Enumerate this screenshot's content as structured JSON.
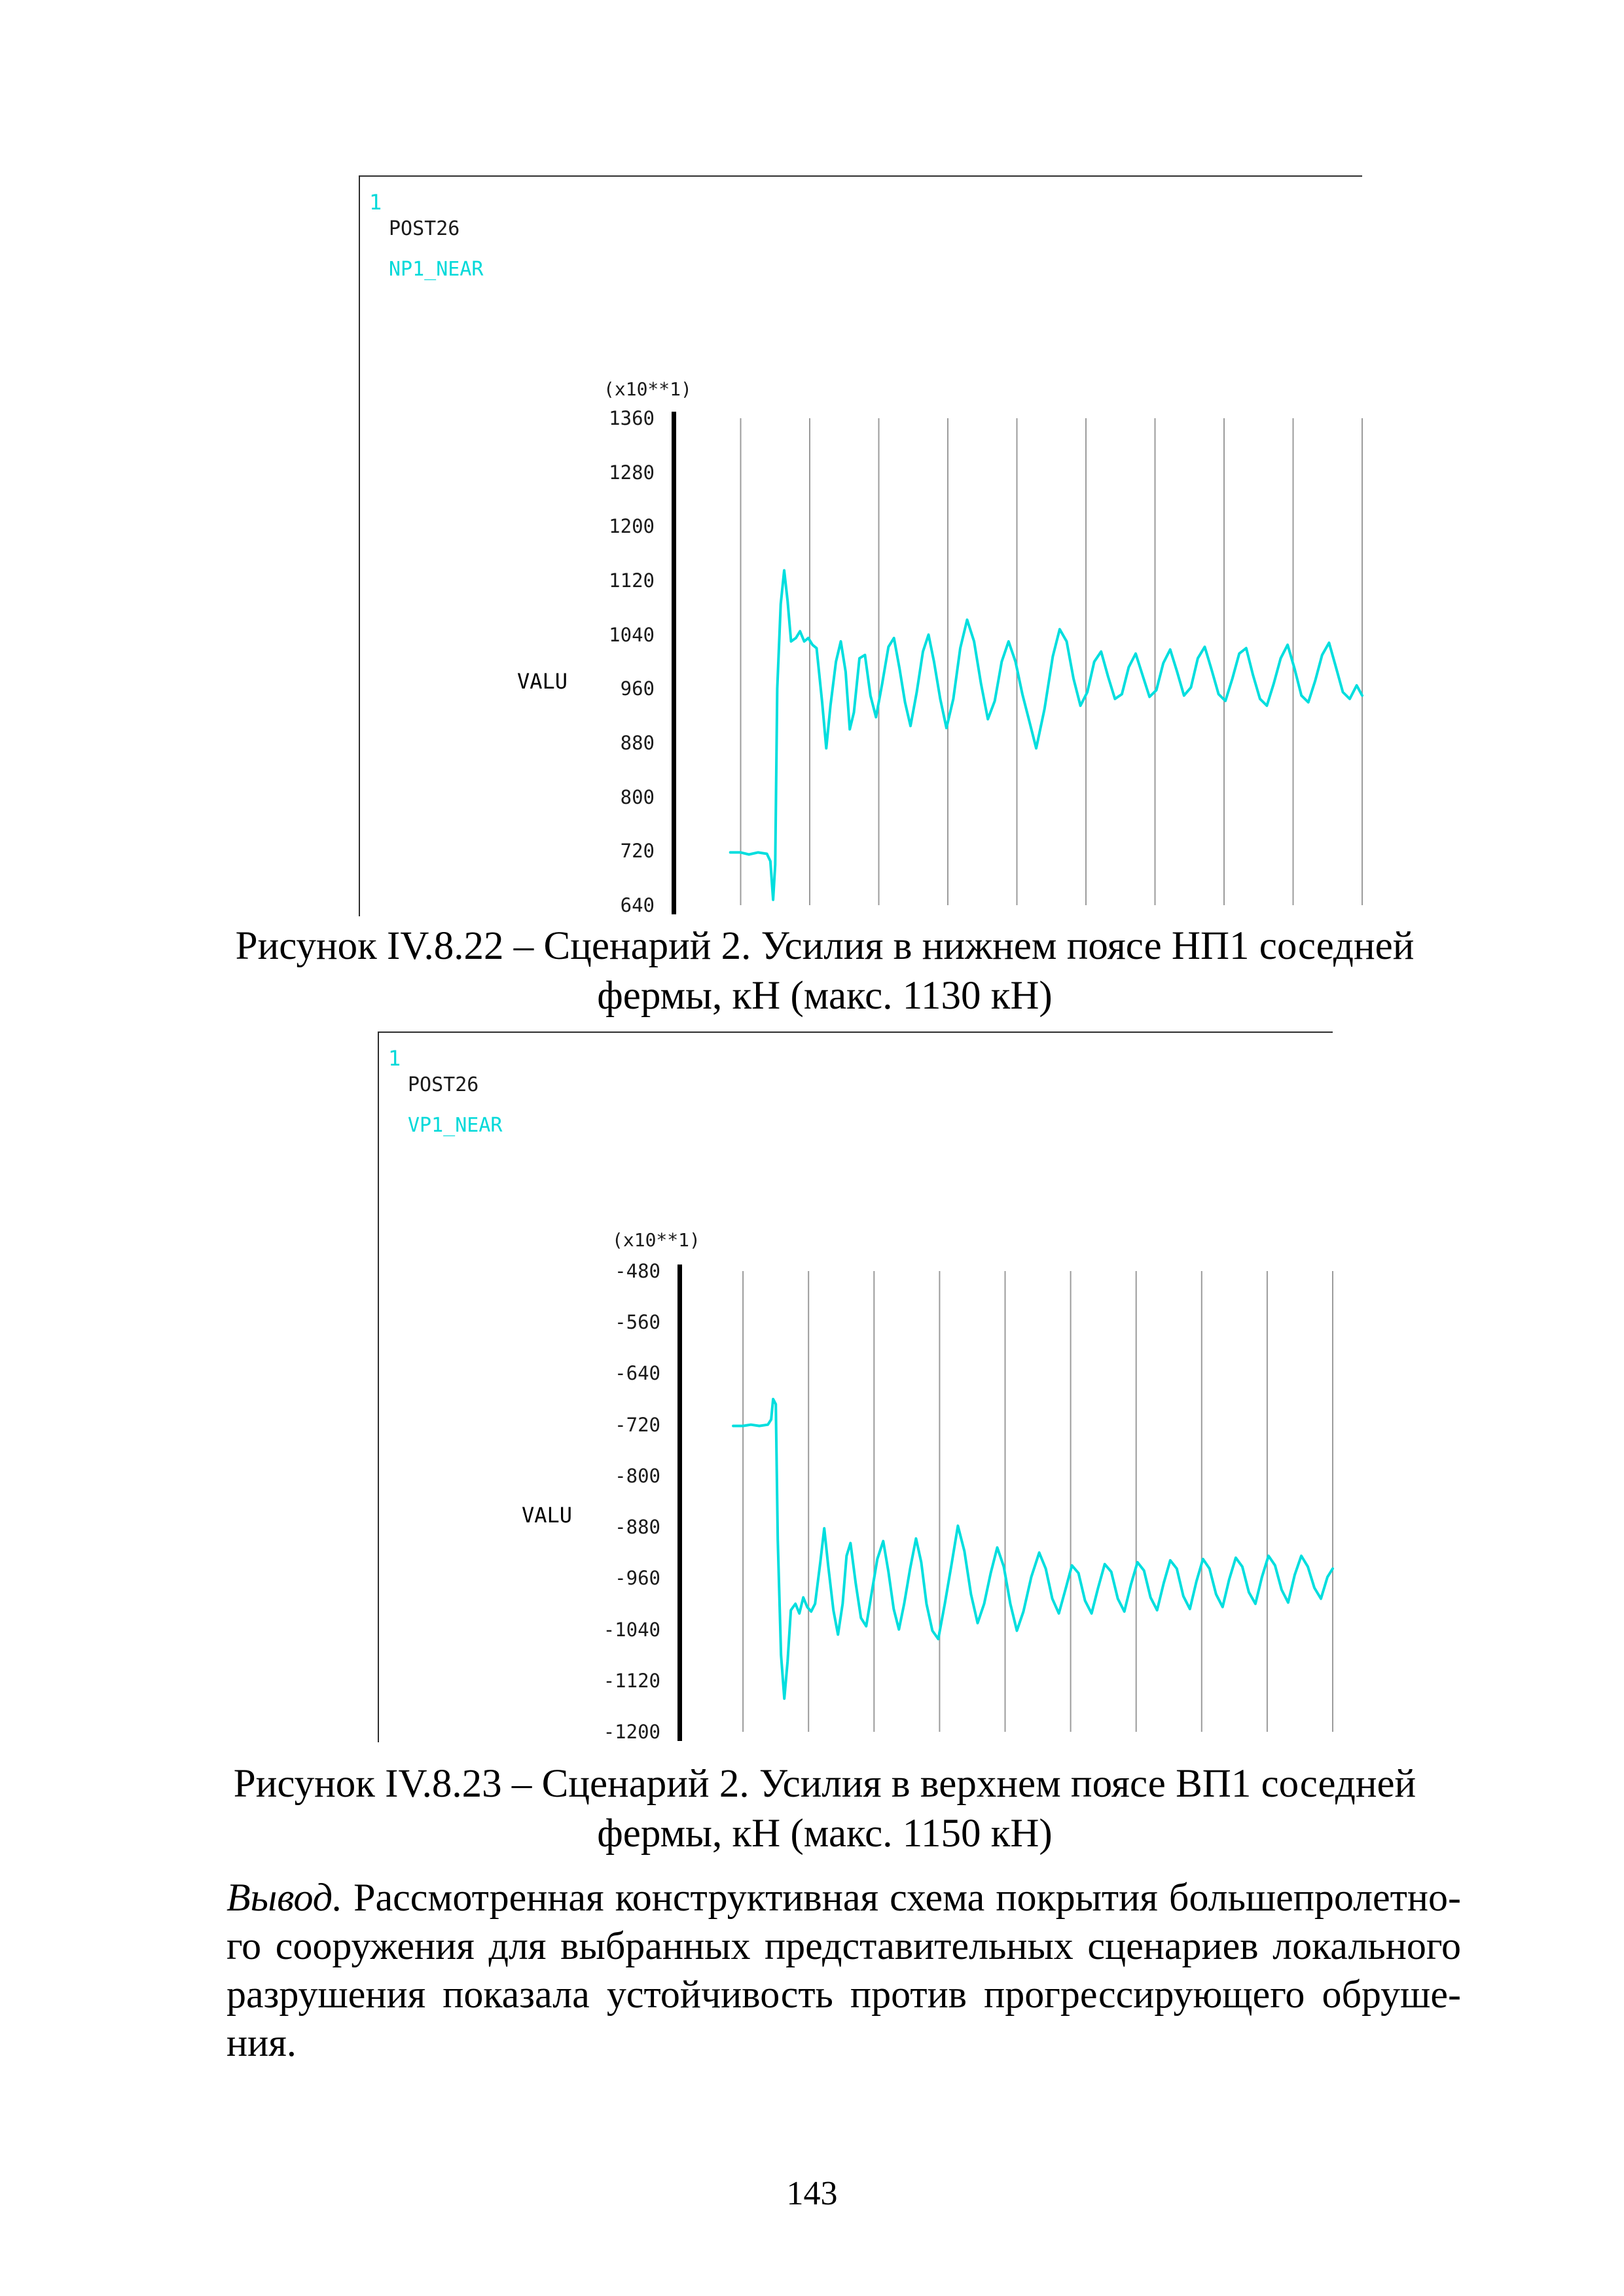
{
  "page": {
    "number": "143"
  },
  "colors": {
    "accent_cyan": "#00dede",
    "grid": "#9b9b9b",
    "axis": "#000000",
    "frame": "#2e2e2e"
  },
  "chart_data": [
    {
      "type": "line",
      "window_label": "1",
      "program": "POST26",
      "series_name": "NP1_NEAR",
      "axis_multiplier": "(x10**1)",
      "ylabel": "VALU",
      "yticks": [
        "1360",
        "1280",
        "1200",
        "1120",
        "1040",
        "960",
        "880",
        "800",
        "720",
        "640"
      ],
      "ylim": [
        640,
        1360
      ],
      "x_divisions": 10,
      "grid": "vertical-only",
      "legend_position": "none",
      "line_color": "#00dede",
      "points": [
        [
          0.085,
          718
        ],
        [
          0.1,
          718
        ],
        [
          0.112,
          715
        ],
        [
          0.125,
          718
        ],
        [
          0.138,
          716
        ],
        [
          0.143,
          705
        ],
        [
          0.147,
          648
        ],
        [
          0.15,
          700
        ],
        [
          0.153,
          960
        ],
        [
          0.158,
          1085
        ],
        [
          0.163,
          1135
        ],
        [
          0.168,
          1090
        ],
        [
          0.173,
          1030
        ],
        [
          0.18,
          1035
        ],
        [
          0.186,
          1045
        ],
        [
          0.192,
          1030
        ],
        [
          0.198,
          1035
        ],
        [
          0.204,
          1025
        ],
        [
          0.21,
          1020
        ],
        [
          0.218,
          940
        ],
        [
          0.224,
          872
        ],
        [
          0.23,
          935
        ],
        [
          0.238,
          1000
        ],
        [
          0.245,
          1030
        ],
        [
          0.252,
          985
        ],
        [
          0.258,
          900
        ],
        [
          0.264,
          925
        ],
        [
          0.272,
          1005
        ],
        [
          0.28,
          1010
        ],
        [
          0.288,
          950
        ],
        [
          0.296,
          918
        ],
        [
          0.305,
          968
        ],
        [
          0.314,
          1022
        ],
        [
          0.322,
          1035
        ],
        [
          0.33,
          990
        ],
        [
          0.338,
          940
        ],
        [
          0.346,
          905
        ],
        [
          0.355,
          955
        ],
        [
          0.364,
          1015
        ],
        [
          0.372,
          1040
        ],
        [
          0.38,
          1000
        ],
        [
          0.389,
          945
        ],
        [
          0.398,
          902
        ],
        [
          0.408,
          945
        ],
        [
          0.418,
          1020
        ],
        [
          0.428,
          1062
        ],
        [
          0.438,
          1030
        ],
        [
          0.448,
          968
        ],
        [
          0.458,
          915
        ],
        [
          0.468,
          942
        ],
        [
          0.478,
          1000
        ],
        [
          0.488,
          1030
        ],
        [
          0.498,
          1000
        ],
        [
          0.508,
          952
        ],
        [
          0.518,
          912
        ],
        [
          0.528,
          872
        ],
        [
          0.54,
          930
        ],
        [
          0.552,
          1008
        ],
        [
          0.562,
          1048
        ],
        [
          0.572,
          1030
        ],
        [
          0.582,
          975
        ],
        [
          0.592,
          935
        ],
        [
          0.602,
          955
        ],
        [
          0.612,
          1000
        ],
        [
          0.622,
          1015
        ],
        [
          0.632,
          978
        ],
        [
          0.642,
          945
        ],
        [
          0.652,
          952
        ],
        [
          0.662,
          992
        ],
        [
          0.672,
          1012
        ],
        [
          0.682,
          980
        ],
        [
          0.692,
          948
        ],
        [
          0.702,
          958
        ],
        [
          0.712,
          998
        ],
        [
          0.722,
          1018
        ],
        [
          0.732,
          985
        ],
        [
          0.742,
          950
        ],
        [
          0.752,
          962
        ],
        [
          0.762,
          1005
        ],
        [
          0.772,
          1022
        ],
        [
          0.782,
          988
        ],
        [
          0.792,
          952
        ],
        [
          0.802,
          942
        ],
        [
          0.812,
          975
        ],
        [
          0.822,
          1012
        ],
        [
          0.832,
          1020
        ],
        [
          0.842,
          980
        ],
        [
          0.852,
          945
        ],
        [
          0.862,
          935
        ],
        [
          0.872,
          968
        ],
        [
          0.882,
          1005
        ],
        [
          0.892,
          1025
        ],
        [
          0.902,
          990
        ],
        [
          0.912,
          950
        ],
        [
          0.922,
          940
        ],
        [
          0.932,
          972
        ],
        [
          0.942,
          1010
        ],
        [
          0.952,
          1028
        ],
        [
          0.962,
          992
        ],
        [
          0.972,
          955
        ],
        [
          0.982,
          945
        ],
        [
          0.992,
          965
        ],
        [
          1.0,
          950
        ]
      ]
    },
    {
      "type": "line",
      "window_label": "1",
      "program": "POST26",
      "series_name": "VP1_NEAR",
      "axis_multiplier": "(x10**1)",
      "ylabel": "VALU",
      "yticks": [
        "-480",
        "-560",
        "-640",
        "-720",
        "-800",
        "-880",
        "-960",
        "-1040",
        "-1120",
        "-1200"
      ],
      "ylim": [
        -1200,
        -480
      ],
      "x_divisions": 10,
      "grid": "vertical-only",
      "legend_position": "none",
      "line_color": "#00dede",
      "points": [
        [
          0.085,
          -722
        ],
        [
          0.1,
          -722
        ],
        [
          0.112,
          -720
        ],
        [
          0.125,
          -722
        ],
        [
          0.138,
          -720
        ],
        [
          0.143,
          -712
        ],
        [
          0.146,
          -680
        ],
        [
          0.15,
          -688
        ],
        [
          0.153,
          -900
        ],
        [
          0.158,
          -1080
        ],
        [
          0.163,
          -1148
        ],
        [
          0.168,
          -1090
        ],
        [
          0.173,
          -1010
        ],
        [
          0.18,
          -1000
        ],
        [
          0.186,
          -1015
        ],
        [
          0.192,
          -990
        ],
        [
          0.198,
          -1005
        ],
        [
          0.204,
          -1012
        ],
        [
          0.21,
          -1000
        ],
        [
          0.218,
          -935
        ],
        [
          0.224,
          -882
        ],
        [
          0.23,
          -940
        ],
        [
          0.238,
          -1010
        ],
        [
          0.245,
          -1048
        ],
        [
          0.252,
          -1000
        ],
        [
          0.258,
          -925
        ],
        [
          0.264,
          -905
        ],
        [
          0.272,
          -968
        ],
        [
          0.28,
          -1022
        ],
        [
          0.288,
          -1035
        ],
        [
          0.296,
          -985
        ],
        [
          0.305,
          -930
        ],
        [
          0.314,
          -902
        ],
        [
          0.322,
          -950
        ],
        [
          0.33,
          -1008
        ],
        [
          0.338,
          -1040
        ],
        [
          0.346,
          -1000
        ],
        [
          0.355,
          -945
        ],
        [
          0.364,
          -898
        ],
        [
          0.372,
          -935
        ],
        [
          0.38,
          -1000
        ],
        [
          0.389,
          -1042
        ],
        [
          0.398,
          -1055
        ],
        [
          0.408,
          -1000
        ],
        [
          0.418,
          -940
        ],
        [
          0.428,
          -878
        ],
        [
          0.438,
          -918
        ],
        [
          0.448,
          -985
        ],
        [
          0.458,
          -1030
        ],
        [
          0.468,
          -1000
        ],
        [
          0.478,
          -952
        ],
        [
          0.488,
          -912
        ],
        [
          0.498,
          -942
        ],
        [
          0.508,
          -1000
        ],
        [
          0.518,
          -1042
        ],
        [
          0.528,
          -1012
        ],
        [
          0.54,
          -958
        ],
        [
          0.552,
          -920
        ],
        [
          0.562,
          -945
        ],
        [
          0.572,
          -992
        ],
        [
          0.582,
          -1015
        ],
        [
          0.592,
          -978
        ],
        [
          0.602,
          -940
        ],
        [
          0.612,
          -952
        ],
        [
          0.622,
          -995
        ],
        [
          0.632,
          -1015
        ],
        [
          0.642,
          -975
        ],
        [
          0.652,
          -938
        ],
        [
          0.662,
          -950
        ],
        [
          0.672,
          -992
        ],
        [
          0.682,
          -1012
        ],
        [
          0.692,
          -970
        ],
        [
          0.702,
          -935
        ],
        [
          0.712,
          -948
        ],
        [
          0.722,
          -990
        ],
        [
          0.732,
          -1010
        ],
        [
          0.742,
          -968
        ],
        [
          0.752,
          -932
        ],
        [
          0.762,
          -945
        ],
        [
          0.772,
          -988
        ],
        [
          0.782,
          -1008
        ],
        [
          0.792,
          -965
        ],
        [
          0.802,
          -930
        ],
        [
          0.812,
          -945
        ],
        [
          0.822,
          -985
        ],
        [
          0.832,
          -1005
        ],
        [
          0.842,
          -962
        ],
        [
          0.852,
          -928
        ],
        [
          0.862,
          -942
        ],
        [
          0.872,
          -982
        ],
        [
          0.882,
          -1000
        ],
        [
          0.892,
          -958
        ],
        [
          0.902,
          -925
        ],
        [
          0.912,
          -940
        ],
        [
          0.922,
          -978
        ],
        [
          0.932,
          -998
        ],
        [
          0.942,
          -955
        ],
        [
          0.952,
          -925
        ],
        [
          0.962,
          -942
        ],
        [
          0.972,
          -975
        ],
        [
          0.982,
          -992
        ],
        [
          0.992,
          -958
        ],
        [
          1.0,
          -945
        ]
      ]
    }
  ],
  "captions": [
    {
      "line1": "Рисунок IV.8.22 – Сценарий 2. Усилия в нижнем поясе НП1 соседней",
      "line2": "фермы, кН (макс. 1130 кН)"
    },
    {
      "line1": "Рисунок IV.8.23 – Сценарий 2. Усилия в верхнем поясе ВП1 соседней",
      "line2": "фермы, кН (макс. 1150 кН)"
    }
  ],
  "conclusion": {
    "lead_italic": "Вывод.",
    "line1_rest": " Рассмотренная конструктивная схема покрытия большепролетно-",
    "line2": "го сооружения для выбранных представительных сценариев локального",
    "line3": "разрушения показала устойчивость против прогрессирующего обруше-",
    "line4": "ния."
  }
}
